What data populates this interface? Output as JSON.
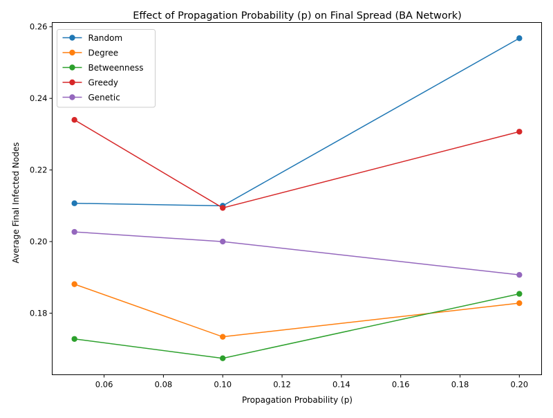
{
  "chart_data": {
    "type": "line",
    "title": "Effect of Propagation Probability (p) on Final Spread (BA Network)",
    "xlabel": "Propagation Probability (p)",
    "ylabel": "Average Final Infected Nodes",
    "x": [
      0.05,
      0.1,
      0.2
    ],
    "xlim": [
      0.0425,
      0.2075
    ],
    "ylim": [
      0.1628,
      0.2612
    ],
    "xticks": [
      0.06,
      0.08,
      0.1,
      0.12,
      0.14,
      0.16,
      0.18,
      0.2
    ],
    "xtick_labels": [
      "0.06",
      "0.08",
      "0.10",
      "0.12",
      "0.14",
      "0.16",
      "0.18",
      "0.20"
    ],
    "yticks": [
      0.18,
      0.2,
      0.22,
      0.24,
      0.26
    ],
    "ytick_labels": [
      "0.18",
      "0.20",
      "0.22",
      "0.24",
      "0.26"
    ],
    "grid": false,
    "legend_position": "top-left",
    "series": [
      {
        "name": "Random",
        "color": "#1f77b4",
        "values": [
          0.2107,
          0.21,
          0.2568
        ]
      },
      {
        "name": "Degree",
        "color": "#ff7f0e",
        "values": [
          0.1881,
          0.1734,
          0.1828
        ]
      },
      {
        "name": "Betweenness",
        "color": "#2ca02c",
        "values": [
          0.1728,
          0.1674,
          0.1854
        ]
      },
      {
        "name": "Greedy",
        "color": "#d62728",
        "values": [
          0.234,
          0.2094,
          0.2307
        ]
      },
      {
        "name": "Genetic",
        "color": "#9467bd",
        "values": [
          0.2027,
          0.2,
          0.1907
        ]
      }
    ]
  }
}
